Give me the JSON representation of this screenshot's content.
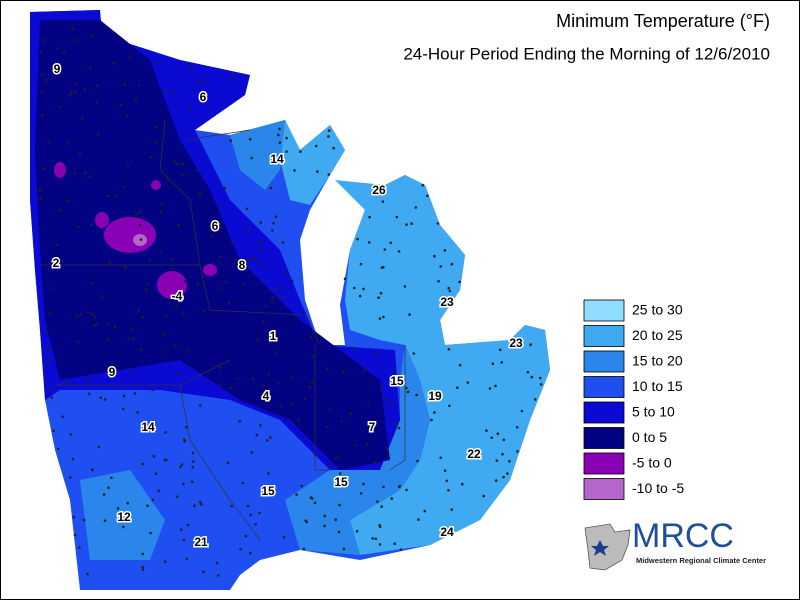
{
  "title": "Minimum Temperature (°F)",
  "subtitle": "24-Hour Period Ending the Morning of 12/6/2010",
  "legend": [
    {
      "label": "25 to 30",
      "color": "#8fdcff"
    },
    {
      "label": "20 to 25",
      "color": "#3faaf2"
    },
    {
      "label": "15 to 20",
      "color": "#2a86ea"
    },
    {
      "label": "10 to 15",
      "color": "#1f4ff0"
    },
    {
      "label": "5 to 10",
      "color": "#0a0ad2"
    },
    {
      "label": "0 to 5",
      "color": "#020282"
    },
    {
      "label": "-5 to 0",
      "color": "#8a00b4"
    },
    {
      "label": "-10 to -5",
      "color": "#b466cc"
    }
  ],
  "station_values": [
    9,
    6,
    14,
    26,
    2,
    6,
    8,
    -4,
    23,
    1,
    23,
    9,
    15,
    19,
    14,
    4,
    7,
    22,
    15,
    15,
    12,
    21,
    24
  ],
  "logo": {
    "name": "MRCC",
    "full_name": "Midwestern Regional Climate Center"
  }
}
